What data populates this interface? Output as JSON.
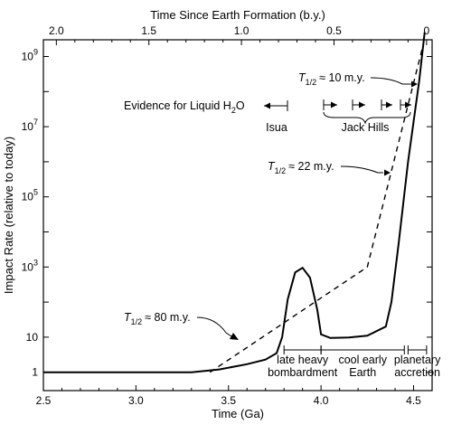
{
  "chart_data": {
    "type": "line",
    "x_axis": {
      "label": "Time (Ga)",
      "range": [
        2.5,
        4.6
      ],
      "ticks": [
        "2.5",
        "3.0",
        "3.5",
        "4.0",
        "4.5"
      ]
    },
    "top_axis": {
      "label": "Time Since Earth Formation (b.y.)",
      "ticks": [
        "2.0",
        "1.5",
        "1.0",
        "0.5",
        "0"
      ]
    },
    "y_axis": {
      "label": "Impact Rate (relative to today)",
      "scale": "log",
      "range": [
        0.3,
        3000000000.0
      ],
      "tick_labels": [
        {
          "base": "1",
          "exp": "",
          "value": 1
        },
        {
          "base": "10",
          "exp": "",
          "value": 10
        },
        {
          "base": "10",
          "exp": "3",
          "value": 1000
        },
        {
          "base": "10",
          "exp": "5",
          "value": 100000
        },
        {
          "base": "10",
          "exp": "7",
          "value": 10000000
        },
        {
          "base": "10",
          "exp": "9",
          "value": 1000000000
        }
      ]
    },
    "series": [
      {
        "style": "solid",
        "points": [
          [
            2.5,
            1
          ],
          [
            3.3,
            1
          ],
          [
            3.45,
            1.2
          ],
          [
            3.6,
            1.7
          ],
          [
            3.7,
            2.3
          ],
          [
            3.76,
            3.5
          ],
          [
            3.79,
            10
          ],
          [
            3.82,
            120
          ],
          [
            3.86,
            700
          ],
          [
            3.9,
            950
          ],
          [
            3.94,
            500
          ],
          [
            3.98,
            60
          ],
          [
            4.0,
            12
          ],
          [
            4.05,
            9.5
          ],
          [
            4.15,
            9.8
          ],
          [
            4.25,
            11
          ],
          [
            4.35,
            20
          ],
          [
            4.38,
            100
          ],
          [
            4.42,
            5000
          ],
          [
            4.47,
            1000000.0
          ],
          [
            4.53,
            200000000.0
          ],
          [
            4.56,
            5000000000.0
          ]
        ]
      },
      {
        "style": "dashed",
        "points": [
          [
            3.4,
            1
          ],
          [
            4.25,
            1000
          ],
          [
            4.55,
            2000000000.0
          ]
        ]
      }
    ],
    "annotations": {
      "evidence_label": "Evidence for Liquid H",
      "evidence_sub": "2",
      "evidence_tail": "O",
      "isua": "Isua",
      "jack_hills": "Jack Hills",
      "half_life_10": {
        "t": "T",
        "sub": "1/2",
        "text": "≈ 10 m.y."
      },
      "half_life_22": {
        "t": "T",
        "sub": "1/2",
        "text": "≈ 22 m.y."
      },
      "half_life_80": {
        "t": "T",
        "sub": "1/2",
        "text": "≈ 80 m.y."
      },
      "periods": [
        {
          "line1": "late heavy",
          "line2": "bombardment",
          "from": 3.8,
          "to": 4.0
        },
        {
          "line1": "cool early",
          "line2": "Earth",
          "from": 4.0,
          "to": 4.45
        },
        {
          "line1": "planetary",
          "line2": "accretion",
          "from": 4.47,
          "to": 4.57
        }
      ]
    }
  }
}
